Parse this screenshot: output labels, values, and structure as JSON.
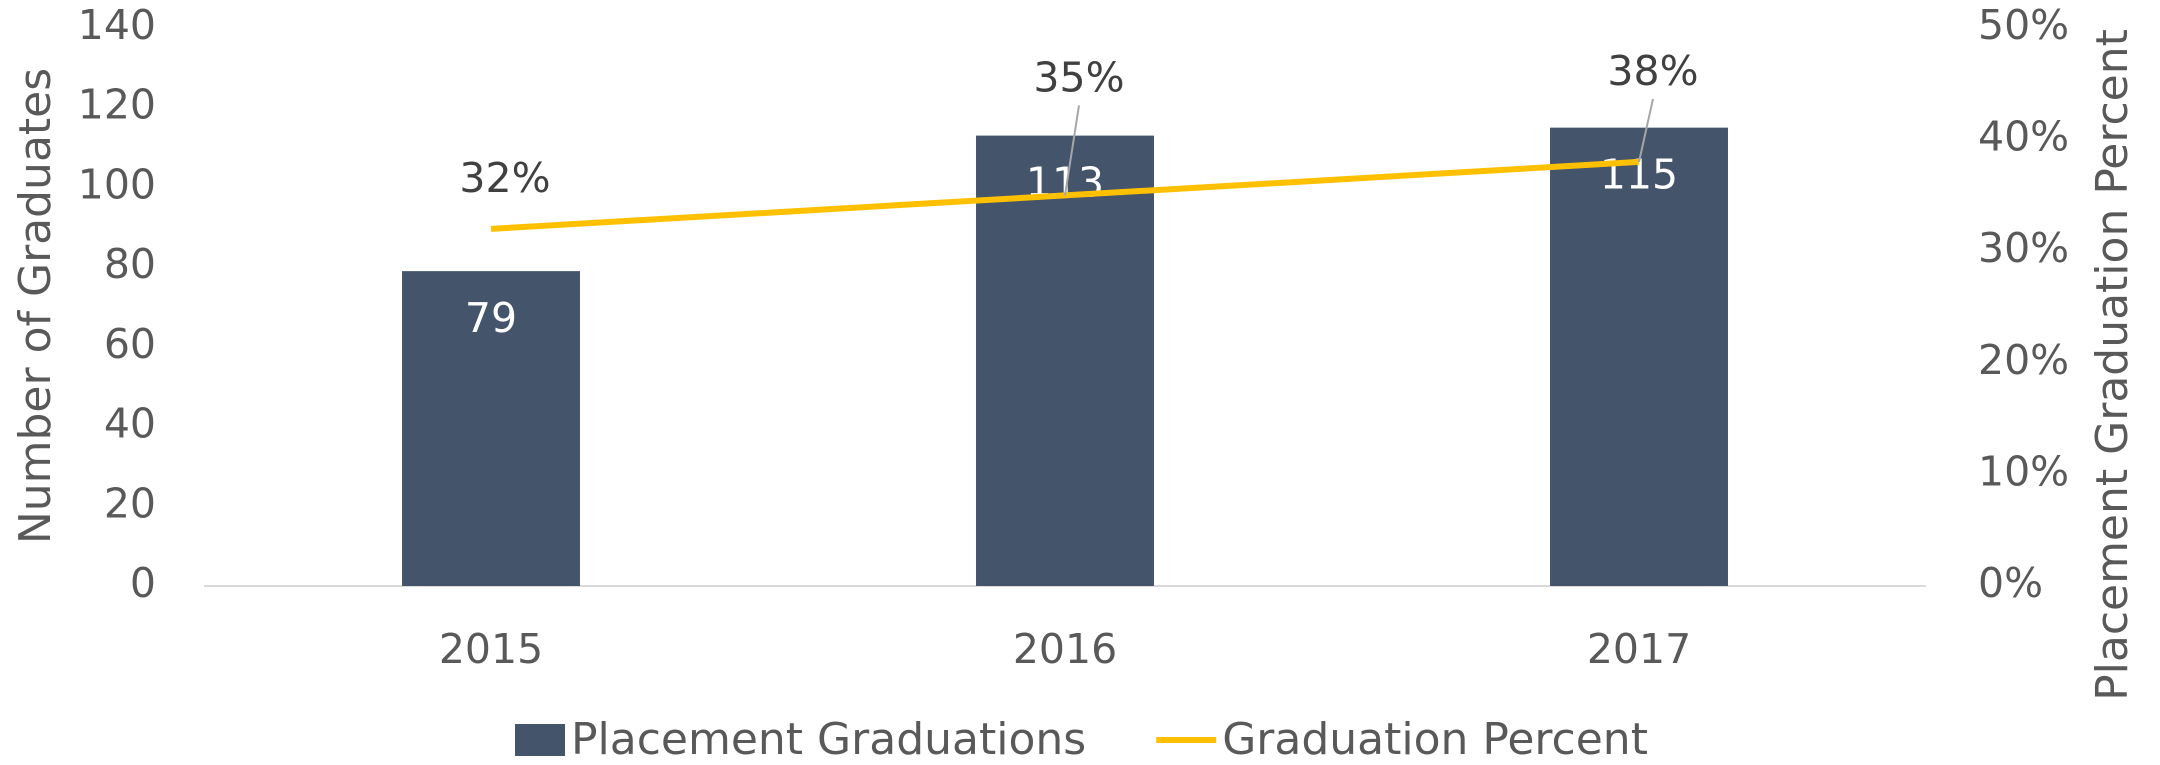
{
  "chart_data": {
    "type": "bar",
    "categories": [
      "2015",
      "2016",
      "2017"
    ],
    "series": [
      {
        "name": "Placement Graduations",
        "color": "#44546a",
        "values": [
          79,
          113,
          115
        ]
      },
      {
        "name": "Graduation Percent",
        "type": "line",
        "axis": "y2",
        "color": "#ffc000",
        "values": [
          32,
          35,
          38
        ],
        "value_labels": [
          "32%",
          "35%",
          "38%"
        ]
      }
    ],
    "ylabel": "Number of Graduates",
    "y2label": "Placement Graduation Percent",
    "ylim": [
      0,
      140
    ],
    "yticks": [
      0,
      20,
      40,
      60,
      80,
      100,
      120,
      140
    ],
    "y2lim": [
      0,
      50
    ],
    "y2ticks": [
      {
        "value": 0,
        "label": "0%"
      },
      {
        "value": 10,
        "label": "10%"
      },
      {
        "value": 20,
        "label": "20%"
      },
      {
        "value": 30,
        "label": "30%"
      },
      {
        "value": 40,
        "label": "40%"
      },
      {
        "value": 50,
        "label": "50%"
      }
    ],
    "legend": "bottom"
  }
}
